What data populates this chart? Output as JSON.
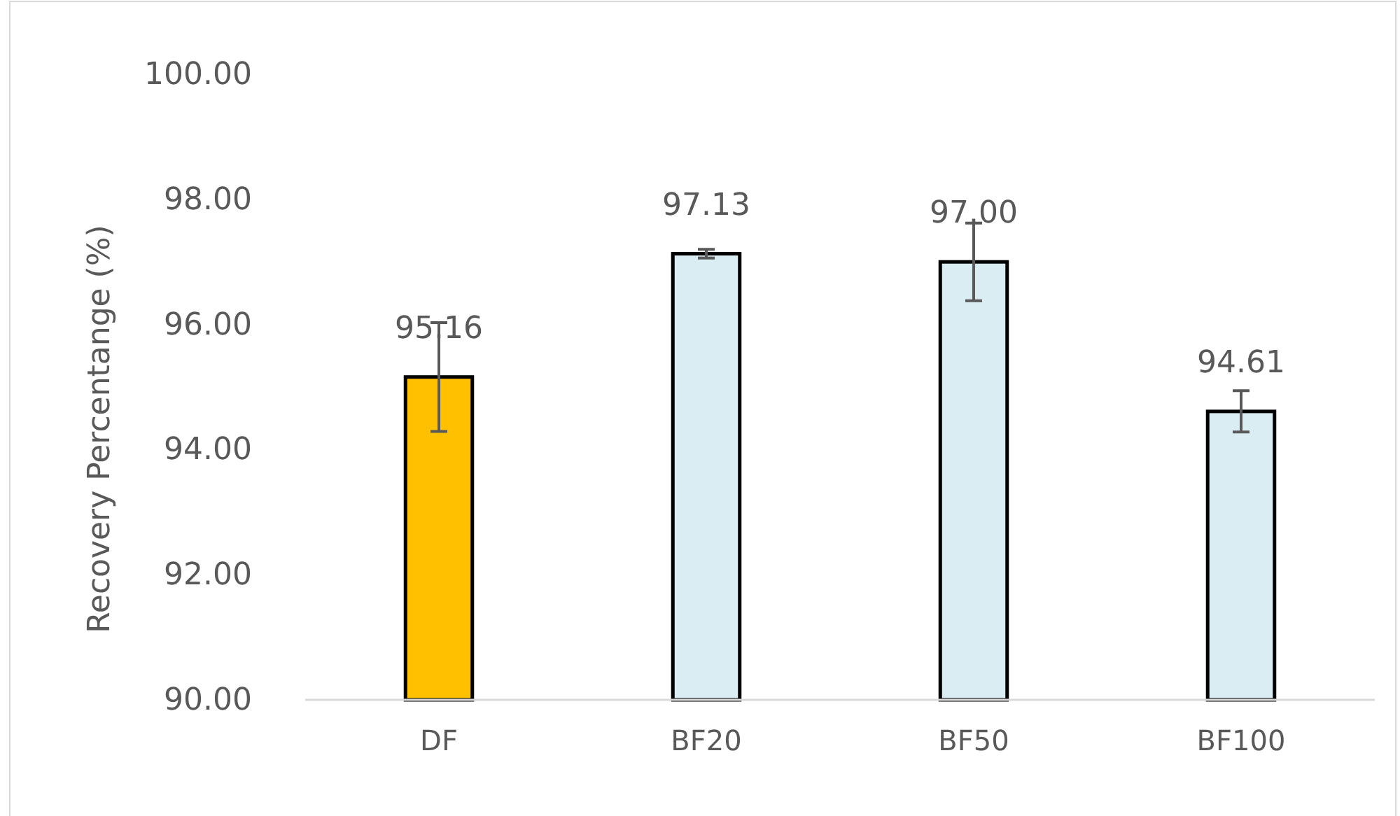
{
  "chart_data": {
    "type": "bar",
    "ylabel": "Recovery Percentange (%)",
    "categories": [
      "DF",
      "BF20",
      "BF50",
      "BF100"
    ],
    "values": [
      95.16,
      97.13,
      97.0,
      94.61
    ],
    "colors": [
      "#ffc000",
      "#daedf3",
      "#daedf3",
      "#daedf3"
    ],
    "errors": [
      0.87,
      0.07,
      0.62,
      0.33
    ],
    "ylim": [
      90,
      100
    ],
    "yticks": [
      {
        "value": 90,
        "label": "90.00"
      },
      {
        "value": 92,
        "label": "92.00"
      },
      {
        "value": 94,
        "label": "94.00"
      },
      {
        "value": 96,
        "label": "96.00"
      },
      {
        "value": 98,
        "label": "98.00"
      },
      {
        "value": 100,
        "label": "100.00"
      }
    ],
    "value_labels": [
      "95.16",
      "97.13",
      "97.00",
      "94.61"
    ],
    "grid": false
  }
}
